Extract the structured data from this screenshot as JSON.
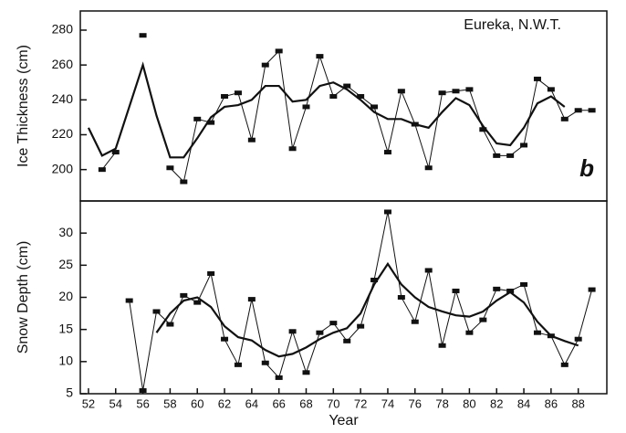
{
  "chart_data": [
    {
      "type": "line",
      "ylabel": "Ice Thickness (cm)",
      "annotations": [
        "Eureka, N.W.T.",
        "b"
      ],
      "x": [
        52,
        53,
        54,
        55,
        56,
        57,
        58,
        59,
        60,
        61,
        62,
        63,
        64,
        65,
        66,
        67,
        68,
        69,
        70,
        71,
        72,
        73,
        74,
        75,
        76,
        77,
        78,
        79,
        80,
        81,
        82,
        83,
        84,
        85,
        86,
        87,
        88,
        89
      ],
      "xlim": [
        51.4,
        90.1
      ],
      "ylim": [
        182,
        291
      ],
      "yticks": [
        200,
        220,
        240,
        260,
        280
      ],
      "series": [
        {
          "color": "#111111",
          "markers": true,
          "values": [
            null,
            200,
            210,
            null,
            277,
            null,
            201,
            193,
            229,
            227,
            242,
            244,
            217,
            260,
            268,
            212,
            236,
            265,
            242,
            248,
            242,
            236,
            210,
            245,
            226,
            201,
            244,
            245,
            246,
            223,
            208,
            208,
            214,
            252,
            246,
            229,
            234,
            234
          ]
        },
        {
          "color": "#111111",
          "markers": false,
          "values": [
            224,
            208,
            212,
            236,
            260,
            231,
            207,
            207,
            218,
            230,
            236,
            237,
            240,
            248,
            248,
            239,
            240,
            248,
            250,
            246,
            240,
            233,
            229,
            229,
            226,
            224,
            233,
            241,
            237,
            225,
            215,
            214,
            224,
            238,
            242,
            236,
            null,
            null
          ]
        }
      ]
    },
    {
      "type": "line",
      "ylabel": "Snow Depth (cm)",
      "xlabel": "Year",
      "x": [
        52,
        53,
        54,
        55,
        56,
        57,
        58,
        59,
        60,
        61,
        62,
        63,
        64,
        65,
        66,
        67,
        68,
        69,
        70,
        71,
        72,
        73,
        74,
        75,
        76,
        77,
        78,
        79,
        80,
        81,
        82,
        83,
        84,
        85,
        86,
        87,
        88,
        89
      ],
      "xlim": [
        51.4,
        90.1
      ],
      "ylim": [
        5,
        35
      ],
      "yticks": [
        5,
        10,
        15,
        20,
        25,
        30
      ],
      "xticks": [
        52,
        54,
        56,
        58,
        60,
        62,
        64,
        66,
        68,
        70,
        72,
        74,
        76,
        78,
        80,
        82,
        84,
        86,
        88
      ],
      "series": [
        {
          "color": "#111111",
          "markers": true,
          "values": [
            null,
            null,
            null,
            19.5,
            5.5,
            17.8,
            15.8,
            20.3,
            19.2,
            23.7,
            13.5,
            9.5,
            19.7,
            9.8,
            7.5,
            14.7,
            8.3,
            14.5,
            16.0,
            13.2,
            15.5,
            22.7,
            33.3,
            20.0,
            16.2,
            24.2,
            12.5,
            21.0,
            14.5,
            16.5,
            21.3,
            21.0,
            22.0,
            14.5,
            14.0,
            9.5,
            13.5,
            21.2
          ]
        },
        {
          "color": "#111111",
          "markers": false,
          "values": [
            null,
            null,
            null,
            null,
            null,
            14.5,
            17.5,
            19.5,
            20,
            18.5,
            15.5,
            13.8,
            13.3,
            11.8,
            10.8,
            11.2,
            12.2,
            13.5,
            14.5,
            15.2,
            17.5,
            22.0,
            25.2,
            22.0,
            20.0,
            18.5,
            17.8,
            17.2,
            17.0,
            17.8,
            19.5,
            20.8,
            19.2,
            16.2,
            14.0,
            13.2,
            12.5,
            null
          ]
        }
      ]
    }
  ]
}
